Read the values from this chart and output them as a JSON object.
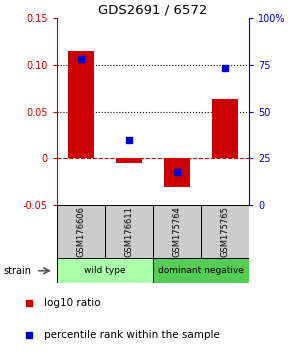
{
  "title": "GDS2691 / 6572",
  "samples": [
    "GSM176606",
    "GSM176611",
    "GSM175764",
    "GSM175765"
  ],
  "log10_ratio": [
    0.115,
    -0.005,
    -0.03,
    0.063
  ],
  "percentile_rank": [
    78,
    35,
    18,
    73
  ],
  "left_ylim": [
    -0.05,
    0.15
  ],
  "right_ylim": [
    0,
    100
  ],
  "right_yticks": [
    0,
    25,
    50,
    75,
    100
  ],
  "right_yticklabels": [
    "0",
    "25",
    "50",
    "75",
    "100%"
  ],
  "left_yticks": [
    -0.05,
    0,
    0.05,
    0.1,
    0.15
  ],
  "left_yticklabels": [
    "-0.05",
    "0",
    "0.05",
    "0.10",
    "0.15"
  ],
  "hlines_dotted": [
    0.1,
    0.05
  ],
  "hline_dashed": 0.0,
  "bar_color": "#cc0000",
  "dot_color": "#0000cc",
  "groups": [
    {
      "label": "wild type",
      "samples": [
        0,
        1
      ],
      "color": "#aaffaa"
    },
    {
      "label": "dominant negative",
      "samples": [
        2,
        3
      ],
      "color": "#55cc55"
    }
  ],
  "legend_bar_label": "log10 ratio",
  "legend_dot_label": "percentile rank within the sample",
  "title_color": "#000000",
  "left_axis_color": "#cc0000",
  "right_axis_color": "#0000cc"
}
